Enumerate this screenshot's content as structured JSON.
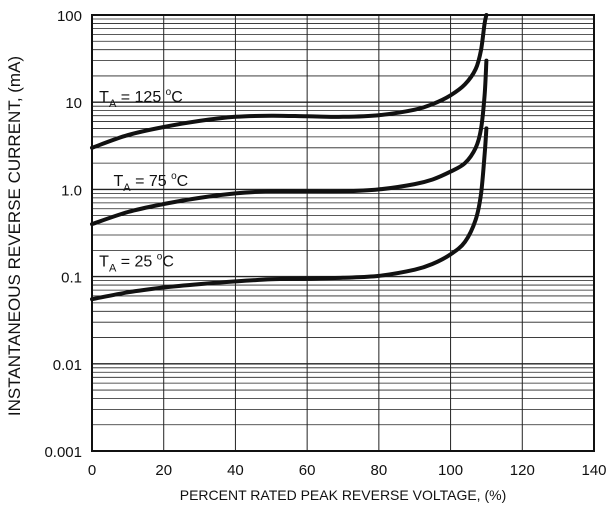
{
  "chart_data": {
    "type": "line",
    "title": "",
    "xlabel": "PERCENT RATED PEAK REVERSE VOLTAGE, (%)",
    "ylabel": "INSTANTANEOUS REVERSE CURRENT, (mA)",
    "xlim": [
      0,
      140
    ],
    "ylim": [
      0.001,
      100
    ],
    "yscale": "log",
    "grid": true,
    "legend": "none",
    "x_ticks": [
      "0",
      "20",
      "40",
      "60",
      "80",
      "100",
      "120",
      "140"
    ],
    "y_ticks": [
      "0.001",
      "0.01",
      "0.1",
      "1.0",
      "10",
      "100"
    ],
    "series": [
      {
        "name": "TA = 125 °C",
        "label": {
          "base": "T",
          "sub": "A",
          "mid": " = 125 ",
          "sup": "o",
          "tail": "C"
        },
        "label_at": [
          2,
          10
        ],
        "x": [
          0,
          10,
          20,
          30,
          40,
          50,
          60,
          70,
          80,
          90,
          95,
          100,
          104,
          107,
          108.5,
          109.5,
          110
        ],
        "y": [
          3,
          4.2,
          5.2,
          6.1,
          6.8,
          7.0,
          6.9,
          6.8,
          7.1,
          8.2,
          9.5,
          12,
          16,
          24,
          40,
          80,
          100
        ]
      },
      {
        "name": "TA = 75 °C",
        "label": {
          "base": "T",
          "sub": "A",
          "mid": " = 75 ",
          "sup": "o",
          "tail": "C"
        },
        "label_at": [
          6,
          1.1
        ],
        "x": [
          0,
          10,
          20,
          30,
          40,
          50,
          60,
          70,
          80,
          90,
          95,
          100,
          104,
          107,
          108.5,
          109.5,
          110
        ],
        "y": [
          0.4,
          0.55,
          0.68,
          0.8,
          0.9,
          0.95,
          0.95,
          0.95,
          1.0,
          1.15,
          1.3,
          1.6,
          2.0,
          3.0,
          5.0,
          12,
          30
        ]
      },
      {
        "name": "TA = 25 °C",
        "label": {
          "base": "T",
          "sub": "A",
          "mid": " = 25 ",
          "sup": "o",
          "tail": "C"
        },
        "label_at": [
          2,
          0.13
        ],
        "x": [
          0,
          10,
          20,
          30,
          40,
          50,
          60,
          70,
          80,
          90,
          95,
          100,
          104,
          107,
          108.5,
          109.5,
          110
        ],
        "y": [
          0.055,
          0.066,
          0.075,
          0.082,
          0.088,
          0.093,
          0.095,
          0.097,
          0.102,
          0.12,
          0.14,
          0.18,
          0.25,
          0.45,
          0.9,
          2.5,
          5.0
        ]
      }
    ],
    "line_color": "#111111",
    "grid_color": "#222222"
  }
}
